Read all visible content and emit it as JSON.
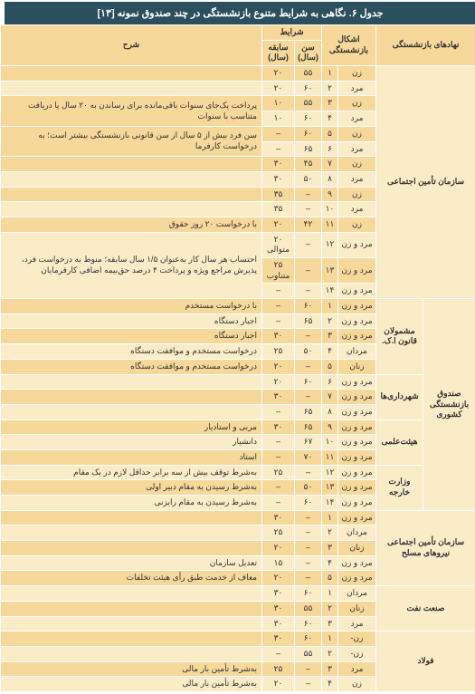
{
  "title": "جدول ۶. نگاهی به شرایط متنوع بازنشستگی در چند صندوق نمونه [۱۳]",
  "headers": {
    "org": "نهادهای بازنشستگی",
    "forms": "اشکال بازنشستگی",
    "cond": "شرایط",
    "age": "سن (سال)",
    "record": "سابقه (سال)",
    "desc": "شرح"
  },
  "rows": [
    {
      "n": "۱",
      "form": "زن",
      "age": "۵۵",
      "rec": "۲۰",
      "desc": ""
    },
    {
      "n": "۲",
      "form": "مرد",
      "age": "۶۰",
      "rec": "۲۰",
      "desc": ""
    },
    {
      "n": "۳",
      "form": "زن",
      "age": "۵۵",
      "rec": "۱۰",
      "desc": "پرداخت یک‌جای سنوات باقی‌مانده برای رساندن به ۲۰ سال یا دریافت متناسب با سنوات"
    },
    {
      "n": "۴",
      "form": "مرد",
      "age": "۶۰",
      "rec": "۱۰",
      "desc": ""
    },
    {
      "n": "۵",
      "form": "زن",
      "age": "۶۰",
      "rec": "–",
      "desc": "سن فرد بیش از ۵ سال از سن قانونی بازنشستگی بیشتر است؛ به درخواست کارفرما"
    },
    {
      "n": "۶",
      "form": "مرد",
      "age": "۶۵",
      "rec": "–",
      "desc": ""
    },
    {
      "n": "۷",
      "form": "زن",
      "age": "۴۵",
      "rec": "۳۰",
      "desc": ""
    },
    {
      "n": "۸",
      "form": "مرد",
      "age": "۵۰",
      "rec": "۳۰",
      "desc": ""
    },
    {
      "n": "۹",
      "form": "زن",
      "age": "–",
      "rec": "۳۵",
      "desc": ""
    },
    {
      "n": "۱۰",
      "form": "مرد",
      "age": "–",
      "rec": "۳۵",
      "desc": ""
    },
    {
      "n": "۱۱",
      "form": "زن",
      "age": "۴۲",
      "rec": "۲۰",
      "desc": "با درخواست ۲۰ روز حقوق"
    },
    {
      "n": "۱۲",
      "form": "مرد و زن",
      "age": "–",
      "rec": "۲۰ متوالی",
      "desc": "احتساب هر سال کار به‌عنوان ۱/۵ سال سابقه؛ منوط به درخواست فرد، پذیرش مراجع ویژه و پرداخت ۴ درصد حق‌بیمه اضافی کارفرمایان"
    },
    {
      "n": "۱۳",
      "form": "مرد و زن",
      "age": "–",
      "rec": "۲۵ متناوب",
      "desc": ""
    },
    {
      "n": "۱۴",
      "form": "مرد و زن",
      "age": "–",
      "rec": "–",
      "desc": ""
    },
    {
      "n": "۱",
      "form": "مرد و زن",
      "age": "۶۰",
      "rec": "–",
      "desc": "با درخواست مستخدم"
    },
    {
      "n": "۲",
      "form": "مرد و زن",
      "age": "۶۵",
      "rec": "–",
      "desc": "اجبار دستگاه"
    },
    {
      "n": "۳",
      "form": "مرد و زن",
      "age": "–",
      "rec": "۳۰",
      "desc": "اجبار دستگاه"
    },
    {
      "n": "۴",
      "form": "مردان",
      "age": "۵۰",
      "rec": "۲۵",
      "desc": "درخواست مستخدم و موافقت دستگاه"
    },
    {
      "n": "۵",
      "form": "زنان",
      "age": "–",
      "rec": "۲۰",
      "desc": "درخواست مستخدم و موافقت دستگاه"
    },
    {
      "n": "۶",
      "form": "مرد و زن",
      "age": "۶۰",
      "rec": "۲۰",
      "desc": ""
    },
    {
      "n": "۷",
      "form": "مرد و زن",
      "age": "–",
      "rec": "۳۰",
      "desc": ""
    },
    {
      "n": "۸",
      "form": "مرد و زن",
      "age": "۶۵",
      "rec": "–",
      "desc": ""
    },
    {
      "n": "۹",
      "form": "مرد و زن",
      "age": "۶۵",
      "rec": "۳۰",
      "desc": "مربی و استادیار"
    },
    {
      "n": "۱۰",
      "form": "مرد و زن",
      "age": "۶۷",
      "rec": "–",
      "desc": "دانشیار"
    },
    {
      "n": "۱۱",
      "form": "مرد و زن",
      "age": "۷۰",
      "rec": "–",
      "desc": "استاد"
    },
    {
      "n": "۱۲",
      "form": "مرد و زن",
      "age": "–",
      "rec": "۲۵",
      "desc": "به‌شرط توقف بیش از سه برابر حداقل لازم در یک مقام"
    },
    {
      "n": "۱۳",
      "form": "مرد و زن",
      "age": "۵۰",
      "rec": "–",
      "desc": "به‌شرط رسیدن به مقام دبیر اولی"
    },
    {
      "n": "۱۴",
      "form": "مرد و زن",
      "age": "۶۰",
      "rec": "–",
      "desc": "به‌شرط رسیدن به مقام رایزنی"
    },
    {
      "n": "۱",
      "form": "مرد و زن",
      "age": "–",
      "rec": "۳۰",
      "desc": ""
    },
    {
      "n": "۲",
      "form": "مردان",
      "age": "–",
      "rec": "۲۵",
      "desc": ""
    },
    {
      "n": "۳",
      "form": "زنان",
      "age": "–",
      "rec": "۲۰",
      "desc": ""
    },
    {
      "n": "۴",
      "form": "مرد و زن",
      "age": "–",
      "rec": "۱۵",
      "desc": "تعدیل سازمان"
    },
    {
      "n": "۵",
      "form": "مرد و زن",
      "age": "–",
      "rec": "۲۰",
      "desc": "معاف از خدمت طبق رأی هیئت تخلفات"
    },
    {
      "n": "۱",
      "form": "مردان",
      "age": "۶۰",
      "rec": "۳۰",
      "desc": ""
    },
    {
      "n": "۲",
      "form": "زنان",
      "age": "۵۵",
      "rec": "۳۰",
      "desc": ""
    },
    {
      "n": "۳",
      "form": "مرد",
      "age": "۶۰",
      "rec": "۳۰",
      "desc": ""
    },
    {
      "n": "۱",
      "form": "زن-",
      "age": "۶۰",
      "rec": "۳۰",
      "desc": ""
    },
    {
      "n": "۲",
      "form": "زن-",
      "age": "۵۵",
      "rec": "–",
      "desc": ""
    },
    {
      "n": "۳",
      "form": "مرد",
      "age": "–",
      "rec": "۲۵",
      "desc": "به‌شرط تأمین بار مالی"
    },
    {
      "n": "۴",
      "form": "زن",
      "age": "–",
      "rec": "۲۰",
      "desc": "به‌شرط تأمین بار مالی"
    }
  ],
  "orgs": [
    {
      "label": "سازمان تأمین اجتماعی",
      "span": 14,
      "sub": null
    },
    {
      "label": "صندوق بازنشستگی کشوری",
      "span": 14,
      "subs": [
        {
          "label": "مشمولان قانون ا.ک.",
          "span": 5
        },
        {
          "label": "شهرداری‌ها",
          "span": 3
        },
        {
          "label": "هیئت‌علمی",
          "span": 3
        },
        {
          "label": "وزارت خارجه",
          "span": 3
        }
      ]
    },
    {
      "label": "سازمان تأمین اجتماعی نیروهای مسلح",
      "span": 5,
      "sub": null
    },
    {
      "label": "صنعت نفت",
      "span": 3,
      "sub": null
    },
    {
      "label": "فولاد",
      "span": 4,
      "sub": null
    }
  ]
}
